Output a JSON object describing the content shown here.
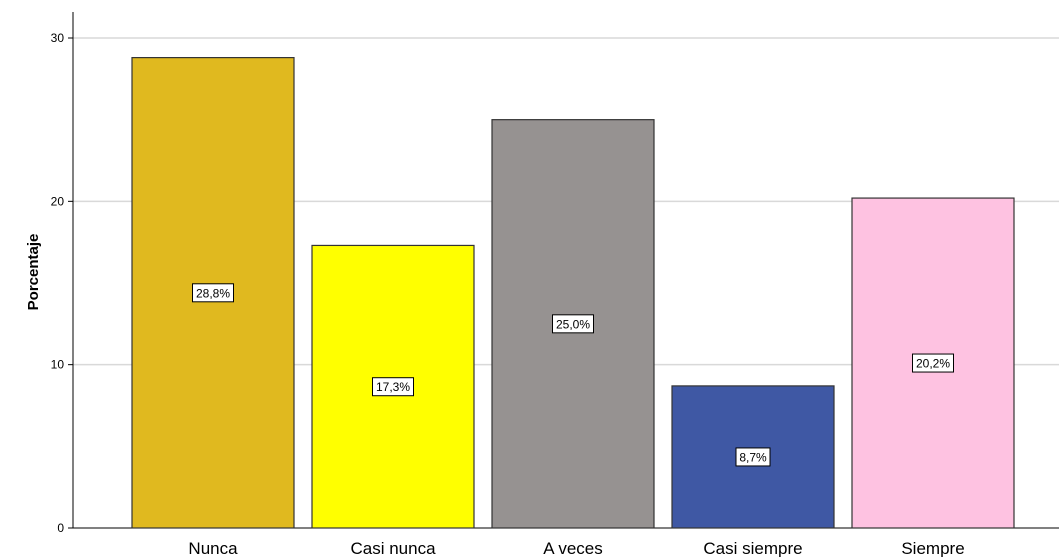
{
  "chart_data": {
    "type": "bar",
    "categories": [
      "Nunca",
      "Casi nunca",
      "A veces",
      "Casi siempre",
      "Siempre"
    ],
    "values": [
      28.8,
      17.3,
      25.0,
      8.7,
      20.2
    ],
    "data_labels": [
      "28,8%",
      "17,3%",
      "25,0%",
      "8,7%",
      "20,2%"
    ],
    "colors": [
      "#e0b91f",
      "#ffff00",
      "#969291",
      "#3f58a4",
      "#fec2e1"
    ],
    "title": "",
    "xlabel": "",
    "ylabel": "Porcentaje",
    "ylim": [
      0,
      30
    ],
    "yticks": [
      0,
      10,
      20,
      30
    ],
    "ytick_labels": [
      "0",
      "10",
      "20",
      "30"
    ],
    "grid": true,
    "legend": "none"
  }
}
